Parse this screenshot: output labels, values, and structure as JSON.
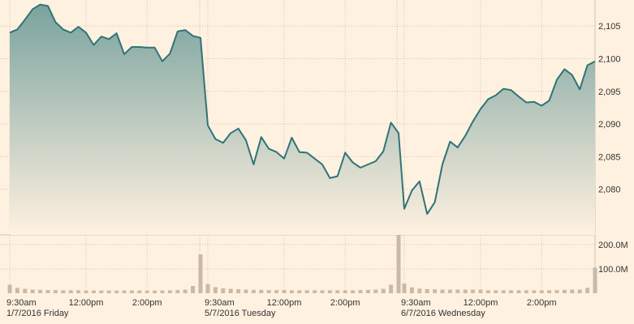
{
  "chart_data": {
    "type": "area",
    "price": {
      "sessions": [
        {
          "date_label": "1/7/2016 Friday",
          "values": [
            2104,
            2104.5,
            2106,
            2107.6,
            2108.3,
            2108.1,
            2105.6,
            2104.5,
            2104,
            2104.9,
            2104,
            2102.1,
            2103.4,
            2103,
            2103.9,
            2100.7,
            2101.8,
            2101.8,
            2101.7,
            2101.7,
            2099.6,
            2100.8,
            2104.2,
            2104.4,
            2103.5,
            2103.2
          ]
        },
        {
          "date_label": "5/7/2016 Tuesday",
          "values": [
            2089.8,
            2087.7,
            2087.1,
            2088.6,
            2089.3,
            2087.5,
            2083.8,
            2088,
            2086.2,
            2085.7,
            2084.7,
            2087.9,
            2085.7,
            2085.6,
            2084.7,
            2083.8,
            2081.7,
            2082,
            2085.6,
            2084.1,
            2083.3,
            2083.8,
            2084.3,
            2085.8,
            2090.2,
            2088.6
          ]
        },
        {
          "date_label": "6/7/2016 Wednesday",
          "values": [
            2077,
            2079.8,
            2081.2,
            2076.2,
            2078,
            2083.8,
            2087.3,
            2086.4,
            2088.2,
            2090.4,
            2092.3,
            2093.8,
            2094.4,
            2095.4,
            2095.2,
            2094.2,
            2093.3,
            2093.4,
            2092.8,
            2093.6,
            2096.8,
            2098.4,
            2097.5,
            2095.3,
            2099,
            2099.6
          ]
        }
      ],
      "ylim": [
        2073,
        2109
      ],
      "y_ticks": [
        2080,
        2085,
        2090,
        2095,
        2100,
        2105
      ],
      "y_tick_labels": [
        "2,080",
        "2,085",
        "2,090",
        "2,095",
        "2,100",
        "2,105"
      ]
    },
    "volume": {
      "unit": "M",
      "ylim": [
        0,
        240
      ],
      "y_ticks": [
        100,
        200
      ],
      "y_tick_labels": [
        "100.0M",
        "200.0M"
      ],
      "sessions": [
        [
          35,
          22,
          18,
          15,
          14,
          13,
          13,
          12,
          12,
          12,
          11,
          11,
          11,
          11,
          11,
          11,
          11,
          11,
          11,
          11,
          11,
          12,
          13,
          15,
          30,
          160
        ],
        [
          38,
          25,
          20,
          18,
          16,
          15,
          14,
          14,
          13,
          13,
          13,
          12,
          12,
          12,
          12,
          12,
          12,
          12,
          12,
          12,
          13,
          14,
          15,
          18,
          35,
          240
        ],
        [
          40,
          24,
          19,
          17,
          16,
          15,
          15,
          15,
          15,
          15,
          15,
          12,
          12,
          12,
          12,
          12,
          12,
          12,
          12,
          12,
          13,
          14,
          15,
          15,
          22,
          105
        ]
      ]
    },
    "x_ticks": [
      {
        "session": 0,
        "index": 0,
        "label": "9:30am"
      },
      {
        "session": 0,
        "index": 10,
        "label": "12:00pm"
      },
      {
        "session": 0,
        "index": 18,
        "label": "2:00pm"
      },
      {
        "session": 1,
        "index": 0,
        "label": "9:30am"
      },
      {
        "session": 1,
        "index": 10,
        "label": "12:00pm"
      },
      {
        "session": 1,
        "index": 18,
        "label": "2:00pm"
      },
      {
        "session": 2,
        "index": 0,
        "label": "9:30am"
      },
      {
        "session": 2,
        "index": 10,
        "label": "12:00pm"
      },
      {
        "session": 2,
        "index": 18,
        "label": "2:00pm"
      }
    ],
    "grid": true,
    "colors": {
      "background": "#fff1e0",
      "line": "#2f7478",
      "area_top": "#7aa39f",
      "area_bottom": "#fff1e0",
      "volume_bar": "#c9b9a8",
      "grid": "#cfc3b5",
      "session_divider": "#c9b9a8"
    }
  }
}
